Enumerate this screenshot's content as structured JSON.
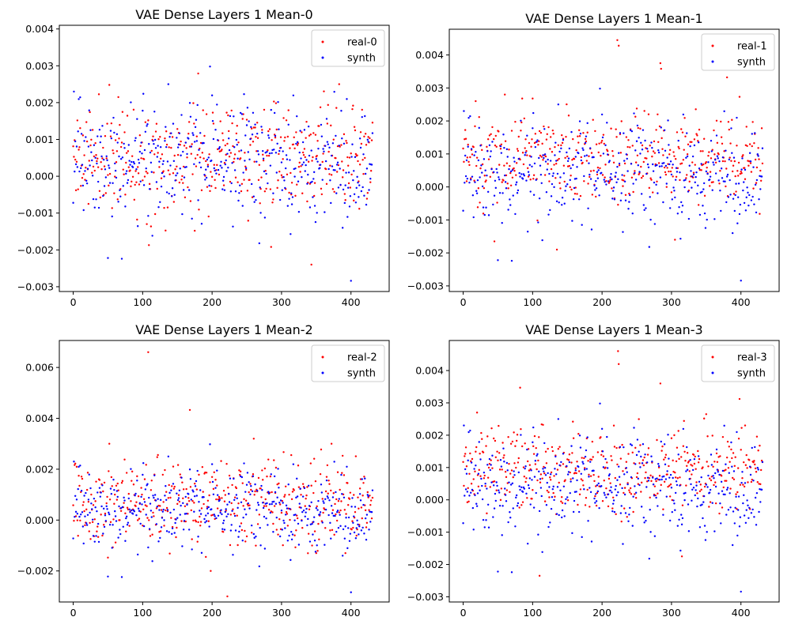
{
  "chart_data": [
    {
      "type": "scatter",
      "title": "VAE Dense Layers 1 Mean-0",
      "xlabel": "",
      "ylabel": "",
      "xlim": [
        -20,
        455
      ],
      "ylim": [
        -0.00313,
        0.0041
      ],
      "xticks": [
        0,
        100,
        200,
        300,
        400
      ],
      "yticks": [
        -0.003,
        -0.002,
        -0.001,
        0.0,
        0.001,
        0.002,
        0.003,
        0.004
      ],
      "ytick_labels": [
        "−0.003",
        "−0.002",
        "−0.001",
        "0.000",
        "0.001",
        "0.002",
        "0.003",
        "0.004"
      ],
      "legend_position": "top-right",
      "grid": false,
      "series": [
        {
          "name": "real-0",
          "color": "#ff0000",
          "n": 432,
          "center": 0.00053,
          "spread": 0.00068,
          "seed": 11,
          "outliers": [
            [
              52,
              0.00248
            ],
            [
              180,
              0.00279
            ],
            [
              383,
              0.0025
            ],
            [
              343,
              -0.0024
            ],
            [
              109,
              -0.00187
            ],
            [
              285,
              -0.00192
            ],
            [
              175,
              -0.00148
            ],
            [
              65,
              0.00215
            ]
          ]
        },
        {
          "name": "synth",
          "color": "#0000ff",
          "n": 432,
          "center": 0.00045,
          "spread": 0.00075,
          "seed": 23,
          "outliers": [
            [
              1,
              0.0023
            ],
            [
              197,
              0.00298
            ],
            [
              137,
              0.0025
            ],
            [
              400,
              -0.00284
            ],
            [
              50,
              -0.00222
            ],
            [
              70,
              -0.00224
            ],
            [
              268,
              -0.00182
            ],
            [
              313,
              -0.00157
            ]
          ]
        }
      ]
    },
    {
      "type": "scatter",
      "title": "VAE Dense Layers 1 Mean-1",
      "xlabel": "",
      "ylabel": "",
      "xlim": [
        -20,
        455
      ],
      "ylim": [
        -0.00317,
        0.00478
      ],
      "xticks": [
        0,
        100,
        200,
        300,
        400
      ],
      "yticks": [
        -0.003,
        -0.002,
        -0.001,
        0.0,
        0.001,
        0.002,
        0.003,
        0.004
      ],
      "ytick_labels": [
        "−0.003",
        "−0.002",
        "−0.001",
        "0.000",
        "0.001",
        "0.002",
        "0.003",
        "0.004"
      ],
      "legend_position": "top-right",
      "grid": false,
      "series": [
        {
          "name": "real-1",
          "color": "#ff0000",
          "n": 432,
          "center": 0.00085,
          "spread": 0.00065,
          "seed": 37,
          "outliers": [
            [
              222,
              0.00445
            ],
            [
              224,
              0.00428
            ],
            [
              284,
              0.00375
            ],
            [
              285,
              0.00358
            ],
            [
              380,
              0.00332
            ],
            [
              398,
              0.00273
            ],
            [
              60,
              0.0028
            ],
            [
              85,
              0.00268
            ],
            [
              100,
              0.00268
            ],
            [
              18,
              0.0026
            ],
            [
              45,
              -0.00165
            ],
            [
              135,
              -0.0019
            ],
            [
              305,
              -0.0016
            ]
          ]
        },
        {
          "name": "synth",
          "color": "#0000ff",
          "n": 432,
          "center": 0.00045,
          "spread": 0.00075,
          "seed": 23,
          "outliers": [
            [
              1,
              0.0023
            ],
            [
              197,
              0.00298
            ],
            [
              137,
              0.0025
            ],
            [
              400,
              -0.00284
            ],
            [
              50,
              -0.00222
            ],
            [
              70,
              -0.00224
            ],
            [
              268,
              -0.00182
            ],
            [
              313,
              -0.00157
            ]
          ]
        }
      ]
    },
    {
      "type": "scatter",
      "title": "VAE Dense Layers 1 Mean-2",
      "xlabel": "",
      "ylabel": "",
      "xlim": [
        -20,
        455
      ],
      "ylim": [
        -0.00322,
        0.00706
      ],
      "xticks": [
        0,
        100,
        200,
        300,
        400
      ],
      "yticks": [
        -0.002,
        0.0,
        0.002,
        0.004,
        0.006
      ],
      "ytick_labels": [
        "−0.002",
        "0.000",
        "0.002",
        "0.004",
        "0.006"
      ],
      "legend_position": "top-right",
      "grid": false,
      "series": [
        {
          "name": "real-2",
          "color": "#ff0000",
          "n": 432,
          "center": 0.0007,
          "spread": 0.00078,
          "seed": 53,
          "outliers": [
            [
              108,
              0.0066
            ],
            [
              168,
              0.00433
            ],
            [
              260,
              0.0032
            ],
            [
              52,
              0.003
            ],
            [
              372,
              0.003
            ],
            [
              222,
              -0.003
            ],
            [
              198,
              -0.002
            ],
            [
              350,
              -0.0013
            ]
          ]
        },
        {
          "name": "synth",
          "color": "#0000ff",
          "n": 432,
          "center": 0.00045,
          "spread": 0.00075,
          "seed": 23,
          "outliers": [
            [
              1,
              0.0023
            ],
            [
              197,
              0.00298
            ],
            [
              137,
              0.0025
            ],
            [
              400,
              -0.00284
            ],
            [
              50,
              -0.00222
            ],
            [
              70,
              -0.00224
            ],
            [
              268,
              -0.00182
            ],
            [
              313,
              -0.00157
            ]
          ]
        }
      ]
    },
    {
      "type": "scatter",
      "title": "VAE Dense Layers 1 Mean-3",
      "xlabel": "",
      "ylabel": "",
      "xlim": [
        -20,
        455
      ],
      "ylim": [
        -0.00316,
        0.00493
      ],
      "xticks": [
        0,
        100,
        200,
        300,
        400
      ],
      "yticks": [
        -0.003,
        -0.002,
        -0.001,
        0.0,
        0.001,
        0.002,
        0.003,
        0.004
      ],
      "ytick_labels": [
        "−0.003",
        "−0.002",
        "−0.001",
        "0.000",
        "0.001",
        "0.002",
        "0.003",
        "0.004"
      ],
      "legend_position": "top-right",
      "grid": false,
      "series": [
        {
          "name": "real-3",
          "color": "#ff0000",
          "n": 432,
          "center": 0.00095,
          "spread": 0.00062,
          "seed": 71,
          "outliers": [
            [
              223,
              0.0046
            ],
            [
              224,
              0.0042
            ],
            [
              284,
              0.0036
            ],
            [
              82,
              0.00347
            ],
            [
              398,
              0.00312
            ],
            [
              350,
              0.00265
            ],
            [
              20,
              0.0027
            ],
            [
              110,
              -0.00235
            ],
            [
              315,
              -0.00175
            ]
          ]
        },
        {
          "name": "synth",
          "color": "#0000ff",
          "n": 432,
          "center": 0.00045,
          "spread": 0.00075,
          "seed": 23,
          "outliers": [
            [
              1,
              0.0023
            ],
            [
              197,
              0.00298
            ],
            [
              137,
              0.0025
            ],
            [
              400,
              -0.00284
            ],
            [
              50,
              -0.00222
            ],
            [
              70,
              -0.00224
            ],
            [
              268,
              -0.00182
            ],
            [
              313,
              -0.00157
            ]
          ]
        }
      ]
    }
  ]
}
